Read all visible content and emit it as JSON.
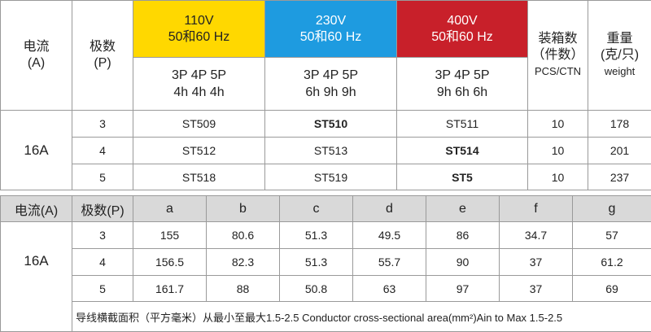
{
  "table1": {
    "header": [
      [
        "电流",
        "(A)"
      ],
      [
        "极数",
        "(P)"
      ],
      [
        "110V",
        "50和60 Hz"
      ],
      [
        "230V",
        "50和60 Hz"
      ],
      [
        "400V",
        "50和60 Hz"
      ],
      [
        "装箱数",
        "（件数）",
        "PCS/CTN"
      ],
      [
        "重量",
        "(克/只)",
        "weight"
      ]
    ],
    "subheader": [
      [
        "3P  4P  5P",
        "4h  4h  4h"
      ],
      [
        "3P  4P  5P",
        "6h  9h  9h"
      ],
      [
        "3P  4P  5P",
        "9h  6h  6h"
      ]
    ],
    "current": "16A",
    "rows": [
      [
        3,
        "ST509",
        "ST510",
        "ST511",
        10,
        178
      ],
      [
        4,
        "ST512",
        "ST513",
        "ST514",
        10,
        201
      ],
      [
        5,
        "ST518",
        "ST519",
        "ST5",
        10,
        237
      ]
    ]
  },
  "table2": {
    "header": [
      "电流(A)",
      "极数(P)",
      "a",
      "b",
      "c",
      "d",
      "e",
      "f",
      "g"
    ],
    "current": "16A",
    "rows": [
      [
        3,
        155,
        80.6,
        51.3,
        49.5,
        86,
        34.7,
        57
      ],
      [
        4,
        156.5,
        82.3,
        51.3,
        55.7,
        90,
        37,
        61.2
      ],
      [
        5,
        161.7,
        88,
        50.8,
        63,
        97,
        37,
        69
      ]
    ],
    "footnote": "导线横截面积（平方毫米）从最小至最大1.5-2.5 Conductor cross-sectional area(mm²)Ain to Max 1.5-2.5"
  }
}
